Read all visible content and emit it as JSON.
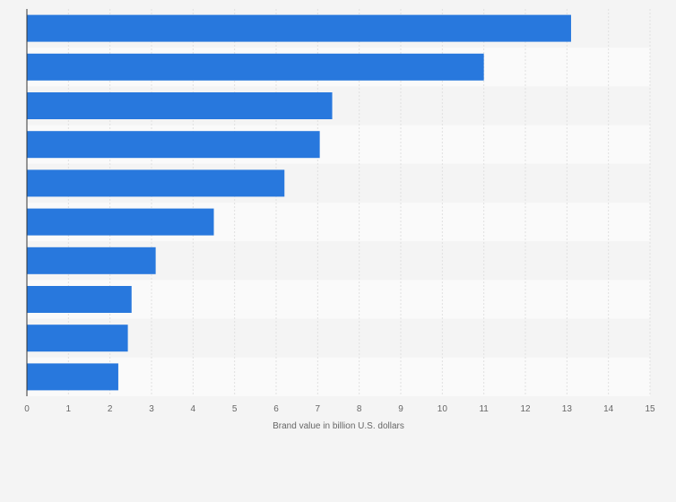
{
  "chart_data": {
    "type": "bar",
    "orientation": "horizontal",
    "categories": [
      "",
      "",
      "",
      "",
      "",
      "",
      "",
      "",
      "",
      ""
    ],
    "values": [
      13.1,
      11.0,
      7.35,
      7.05,
      6.2,
      4.5,
      3.1,
      2.52,
      2.43,
      2.2
    ],
    "title": "",
    "xlabel": "Brand value in billion U.S. dollars",
    "ylabel": "",
    "xlim": [
      0,
      15
    ],
    "xticks": [
      "0",
      "1",
      "2",
      "3",
      "4",
      "5",
      "6",
      "7",
      "8",
      "9",
      "10",
      "11",
      "12",
      "13",
      "14",
      "15"
    ],
    "grid": "vertical",
    "legend": "none",
    "bar_color": "#2878dd",
    "band_colors": [
      "#f4f4f4",
      "#fafafa"
    ],
    "gridline_color": "#e0e0e0",
    "axis_color": "#333333"
  }
}
